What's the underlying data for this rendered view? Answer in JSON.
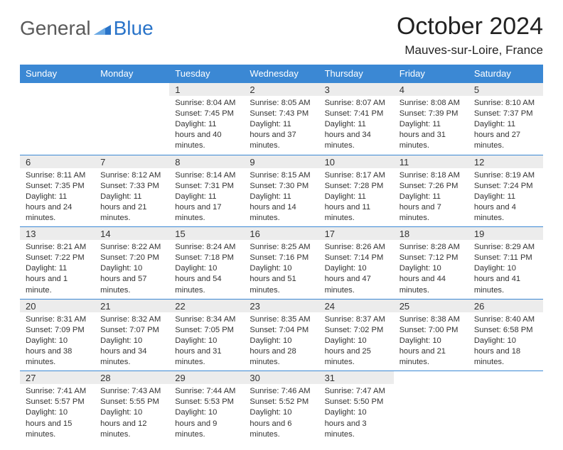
{
  "brand": {
    "word1": "General",
    "word2": "Blue"
  },
  "header": {
    "month": "October 2024",
    "location": "Mauves-sur-Loire, France"
  },
  "colors": {
    "header_bg": "#3b88d4",
    "header_fg": "#ffffff",
    "daynum_bg": "#ececec",
    "row_border": "#3b88d4",
    "brand_gray": "#5a5a5a",
    "brand_blue": "#2a74c9",
    "page_bg": "#ffffff",
    "text": "#333333"
  },
  "daysOfWeek": [
    "Sunday",
    "Monday",
    "Tuesday",
    "Wednesday",
    "Thursday",
    "Friday",
    "Saturday"
  ],
  "weeks": [
    [
      {
        "n": "",
        "sr": "",
        "ss": "",
        "dl": ""
      },
      {
        "n": "",
        "sr": "",
        "ss": "",
        "dl": ""
      },
      {
        "n": "1",
        "sr": "Sunrise: 8:04 AM",
        "ss": "Sunset: 7:45 PM",
        "dl": "Daylight: 11 hours and 40 minutes."
      },
      {
        "n": "2",
        "sr": "Sunrise: 8:05 AM",
        "ss": "Sunset: 7:43 PM",
        "dl": "Daylight: 11 hours and 37 minutes."
      },
      {
        "n": "3",
        "sr": "Sunrise: 8:07 AM",
        "ss": "Sunset: 7:41 PM",
        "dl": "Daylight: 11 hours and 34 minutes."
      },
      {
        "n": "4",
        "sr": "Sunrise: 8:08 AM",
        "ss": "Sunset: 7:39 PM",
        "dl": "Daylight: 11 hours and 31 minutes."
      },
      {
        "n": "5",
        "sr": "Sunrise: 8:10 AM",
        "ss": "Sunset: 7:37 PM",
        "dl": "Daylight: 11 hours and 27 minutes."
      }
    ],
    [
      {
        "n": "6",
        "sr": "Sunrise: 8:11 AM",
        "ss": "Sunset: 7:35 PM",
        "dl": "Daylight: 11 hours and 24 minutes."
      },
      {
        "n": "7",
        "sr": "Sunrise: 8:12 AM",
        "ss": "Sunset: 7:33 PM",
        "dl": "Daylight: 11 hours and 21 minutes."
      },
      {
        "n": "8",
        "sr": "Sunrise: 8:14 AM",
        "ss": "Sunset: 7:31 PM",
        "dl": "Daylight: 11 hours and 17 minutes."
      },
      {
        "n": "9",
        "sr": "Sunrise: 8:15 AM",
        "ss": "Sunset: 7:30 PM",
        "dl": "Daylight: 11 hours and 14 minutes."
      },
      {
        "n": "10",
        "sr": "Sunrise: 8:17 AM",
        "ss": "Sunset: 7:28 PM",
        "dl": "Daylight: 11 hours and 11 minutes."
      },
      {
        "n": "11",
        "sr": "Sunrise: 8:18 AM",
        "ss": "Sunset: 7:26 PM",
        "dl": "Daylight: 11 hours and 7 minutes."
      },
      {
        "n": "12",
        "sr": "Sunrise: 8:19 AM",
        "ss": "Sunset: 7:24 PM",
        "dl": "Daylight: 11 hours and 4 minutes."
      }
    ],
    [
      {
        "n": "13",
        "sr": "Sunrise: 8:21 AM",
        "ss": "Sunset: 7:22 PM",
        "dl": "Daylight: 11 hours and 1 minute."
      },
      {
        "n": "14",
        "sr": "Sunrise: 8:22 AM",
        "ss": "Sunset: 7:20 PM",
        "dl": "Daylight: 10 hours and 57 minutes."
      },
      {
        "n": "15",
        "sr": "Sunrise: 8:24 AM",
        "ss": "Sunset: 7:18 PM",
        "dl": "Daylight: 10 hours and 54 minutes."
      },
      {
        "n": "16",
        "sr": "Sunrise: 8:25 AM",
        "ss": "Sunset: 7:16 PM",
        "dl": "Daylight: 10 hours and 51 minutes."
      },
      {
        "n": "17",
        "sr": "Sunrise: 8:26 AM",
        "ss": "Sunset: 7:14 PM",
        "dl": "Daylight: 10 hours and 47 minutes."
      },
      {
        "n": "18",
        "sr": "Sunrise: 8:28 AM",
        "ss": "Sunset: 7:12 PM",
        "dl": "Daylight: 10 hours and 44 minutes."
      },
      {
        "n": "19",
        "sr": "Sunrise: 8:29 AM",
        "ss": "Sunset: 7:11 PM",
        "dl": "Daylight: 10 hours and 41 minutes."
      }
    ],
    [
      {
        "n": "20",
        "sr": "Sunrise: 8:31 AM",
        "ss": "Sunset: 7:09 PM",
        "dl": "Daylight: 10 hours and 38 minutes."
      },
      {
        "n": "21",
        "sr": "Sunrise: 8:32 AM",
        "ss": "Sunset: 7:07 PM",
        "dl": "Daylight: 10 hours and 34 minutes."
      },
      {
        "n": "22",
        "sr": "Sunrise: 8:34 AM",
        "ss": "Sunset: 7:05 PM",
        "dl": "Daylight: 10 hours and 31 minutes."
      },
      {
        "n": "23",
        "sr": "Sunrise: 8:35 AM",
        "ss": "Sunset: 7:04 PM",
        "dl": "Daylight: 10 hours and 28 minutes."
      },
      {
        "n": "24",
        "sr": "Sunrise: 8:37 AM",
        "ss": "Sunset: 7:02 PM",
        "dl": "Daylight: 10 hours and 25 minutes."
      },
      {
        "n": "25",
        "sr": "Sunrise: 8:38 AM",
        "ss": "Sunset: 7:00 PM",
        "dl": "Daylight: 10 hours and 21 minutes."
      },
      {
        "n": "26",
        "sr": "Sunrise: 8:40 AM",
        "ss": "Sunset: 6:58 PM",
        "dl": "Daylight: 10 hours and 18 minutes."
      }
    ],
    [
      {
        "n": "27",
        "sr": "Sunrise: 7:41 AM",
        "ss": "Sunset: 5:57 PM",
        "dl": "Daylight: 10 hours and 15 minutes."
      },
      {
        "n": "28",
        "sr": "Sunrise: 7:43 AM",
        "ss": "Sunset: 5:55 PM",
        "dl": "Daylight: 10 hours and 12 minutes."
      },
      {
        "n": "29",
        "sr": "Sunrise: 7:44 AM",
        "ss": "Sunset: 5:53 PM",
        "dl": "Daylight: 10 hours and 9 minutes."
      },
      {
        "n": "30",
        "sr": "Sunrise: 7:46 AM",
        "ss": "Sunset: 5:52 PM",
        "dl": "Daylight: 10 hours and 6 minutes."
      },
      {
        "n": "31",
        "sr": "Sunrise: 7:47 AM",
        "ss": "Sunset: 5:50 PM",
        "dl": "Daylight: 10 hours and 3 minutes."
      },
      {
        "n": "",
        "sr": "",
        "ss": "",
        "dl": ""
      },
      {
        "n": "",
        "sr": "",
        "ss": "",
        "dl": ""
      }
    ]
  ]
}
